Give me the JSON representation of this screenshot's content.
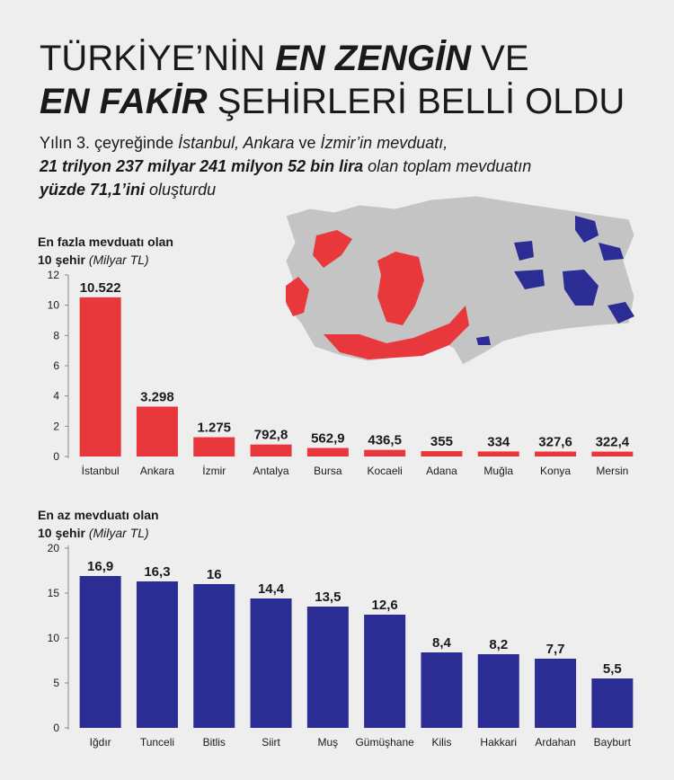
{
  "header": {
    "title_lines": [
      [
        {
          "text": "TÜRKİYE’NİN ",
          "style": "normal"
        },
        {
          "text": "EN ZENGİN",
          "style": "bold-italic"
        },
        {
          "text": " VE",
          "style": "normal"
        }
      ],
      [
        {
          "text": "EN FAKİR",
          "style": "bold-italic"
        },
        {
          "text": " ŞEHİRLERİ BELLİ OLDU",
          "style": "normal"
        }
      ]
    ],
    "subtitle_lines": [
      [
        {
          "text": "Yılın 3. çeyreğinde ",
          "style": "normal"
        },
        {
          "text": "İstanbul, Ankara",
          "style": "italic"
        },
        {
          "text": " ve ",
          "style": "normal"
        },
        {
          "text": "İzmir’in mevduatı,",
          "style": "italic"
        }
      ],
      [
        {
          "text": "21 trilyon 237 milyar 241 milyon 52 bin lira",
          "style": "bold-italic"
        },
        {
          "text": " olan toplam mevduatın",
          "style": "italic"
        }
      ],
      [
        {
          "text": "yüzde 71,1’ini",
          "style": "bold-italic"
        },
        {
          "text": " oluşturdu",
          "style": "italic"
        }
      ]
    ]
  },
  "chart_data": [
    {
      "type": "bar",
      "title": "En fazla mevduatı olan",
      "subtitle": "10 şehir",
      "unit": "(Milyar TL)",
      "categories": [
        "İstanbul",
        "Ankara",
        "İzmir",
        "Antalya",
        "Bursa",
        "Kocaeli",
        "Adana",
        "Muğla",
        "Konya",
        "Mersin"
      ],
      "values": [
        10.522,
        3.298,
        1.275,
        0.7928,
        0.5629,
        0.4365,
        0.355,
        0.334,
        0.3276,
        0.3224
      ],
      "value_labels": [
        "10.522",
        "3.298",
        "1.275",
        "792,8",
        "562,9",
        "436,5",
        "355",
        "334",
        "327,6",
        "322,4"
      ],
      "color": "#e8383b",
      "ylim": [
        0,
        12
      ],
      "yticks": [
        0,
        2,
        4,
        6,
        8,
        10,
        12
      ]
    },
    {
      "type": "bar",
      "title": "En az mevduatı olan",
      "subtitle": "10 şehir",
      "unit": "(Milyar TL)",
      "categories": [
        "Iğdır",
        "Tunceli",
        "Bitlis",
        "Siirt",
        "Muş",
        "Gümüşhane",
        "Kilis",
        "Hakkari",
        "Ardahan",
        "Bayburt"
      ],
      "values": [
        16.9,
        16.3,
        16,
        14.4,
        13.5,
        12.6,
        8.4,
        8.2,
        7.7,
        5.5
      ],
      "value_labels": [
        "16,9",
        "16,3",
        "16",
        "14,4",
        "13,5",
        "12,6",
        "8,4",
        "8,2",
        "7,7",
        "5,5"
      ],
      "color": "#2b2d95",
      "ylim": [
        0,
        20
      ],
      "yticks": [
        0,
        5,
        10,
        15,
        20
      ]
    }
  ]
}
